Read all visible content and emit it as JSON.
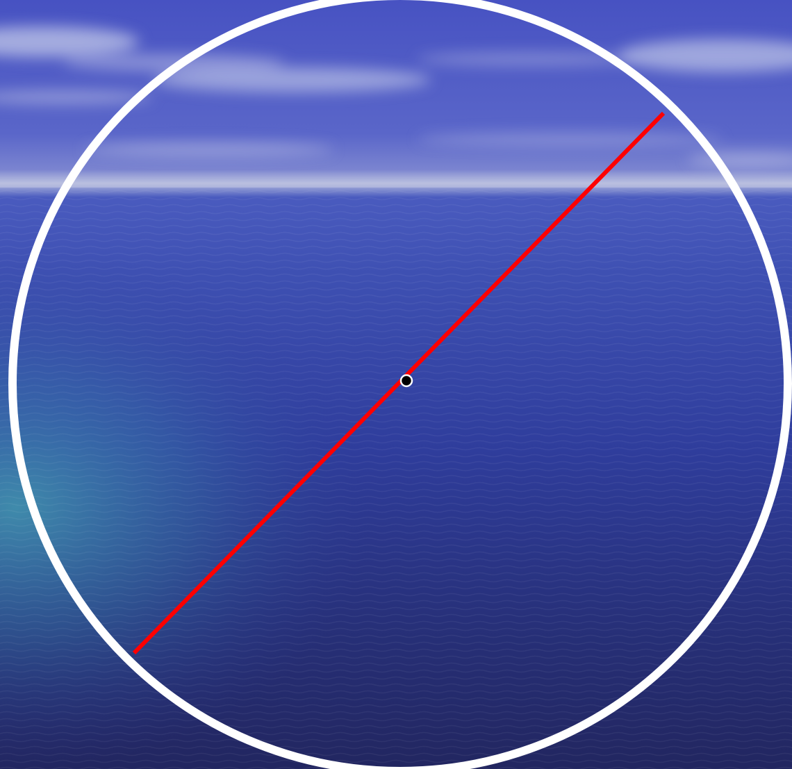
{
  "scene": {
    "description_visible_only": "",
    "colors": {
      "sky_top": "#4a56c4",
      "sky_mid": "#5964c8",
      "cloud": "#c9cfe8",
      "horizon_haze": "#b8bedc",
      "sea_near_horizon": "#3f51b5",
      "sea_mid": "#2e3b9a",
      "sea_deep": "#232863",
      "sea_teal_glow": "#3f9cae",
      "circle_stroke": "#ffffff",
      "diameter_line": "#ff0000",
      "center_dot_fill": "#000000",
      "center_dot_stroke": "#ffffff"
    },
    "icons": {
      "circle": "circle-outline-icon",
      "diameter": "line-segment-icon",
      "center": "center-point-icon"
    }
  }
}
